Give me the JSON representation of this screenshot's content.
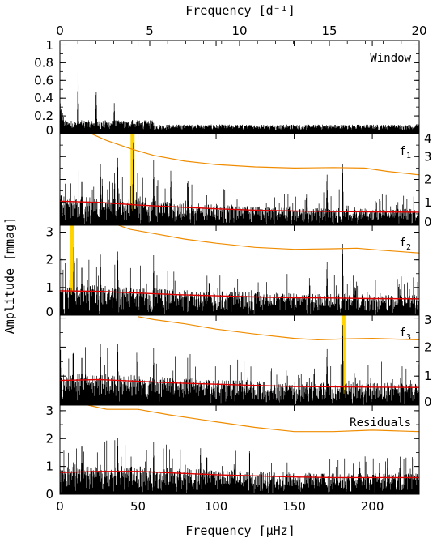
{
  "chart_data": {
    "type": "line",
    "x_axis": {
      "label": "Frequency [μHz]",
      "range": [
        0,
        230
      ],
      "ticks": [
        0,
        50,
        100,
        150,
        200
      ],
      "tick_labels": [
        "0",
        "50",
        "100",
        "150",
        "200"
      ]
    },
    "x_axis_top": {
      "label": "Frequency [d⁻¹]",
      "range": [
        0,
        20
      ],
      "ticks": [
        0,
        5,
        10,
        15,
        20
      ],
      "tick_labels": [
        "0",
        "5",
        "10",
        "15",
        "20"
      ]
    },
    "y_axis_label": "Amplitude [mmag]",
    "panels": [
      {
        "label": "Window",
        "label_main": "Window",
        "label_sub": "",
        "ylim": [
          0,
          1.05
        ],
        "ticks": [
          0,
          0.2,
          0.4,
          0.6,
          0.8,
          1
        ],
        "tick_labels": [
          "0",
          "0.2",
          "0.4",
          "0.6",
          "0.8",
          "1"
        ],
        "tick_side": "left",
        "peaks": [
          [
            11.6,
            0.72
          ],
          [
            23.2,
            0.53
          ],
          [
            34.8,
            0.35
          ],
          [
            46.4,
            0.18
          ],
          [
            58,
            0.08
          ]
        ],
        "noise_curve": [],
        "threshold_curve": [],
        "highlight": []
      },
      {
        "label": "f1",
        "label_main": "f",
        "label_sub": "1",
        "ylim": [
          0,
          4
        ],
        "ticks": [
          0,
          1,
          2,
          3,
          4
        ],
        "tick_labels": [
          "0",
          "1",
          "2",
          "3",
          "4"
        ],
        "tick_side": "right",
        "peaks": [
          [
            26,
            2.8
          ],
          [
            37,
            3.2
          ],
          [
            47,
            3.8
          ],
          [
            60,
            2.9
          ],
          [
            71,
            2.5
          ],
          [
            82,
            2.1
          ],
          [
            171,
            2.4
          ],
          [
            181,
            2.9
          ],
          [
            35,
            2.4
          ],
          [
            14,
            2.2
          ]
        ],
        "noise_curve": [
          [
            0,
            1.05
          ],
          [
            25,
            1.0
          ],
          [
            50,
            0.88
          ],
          [
            75,
            0.8
          ],
          [
            100,
            0.72
          ],
          [
            125,
            0.66
          ],
          [
            150,
            0.62
          ],
          [
            175,
            0.6
          ],
          [
            200,
            0.58
          ],
          [
            230,
            0.57
          ]
        ],
        "threshold_curve": [
          [
            20,
            4.0
          ],
          [
            30,
            3.7
          ],
          [
            45,
            3.35
          ],
          [
            60,
            3.05
          ],
          [
            80,
            2.8
          ],
          [
            100,
            2.65
          ],
          [
            125,
            2.55
          ],
          [
            150,
            2.5
          ],
          [
            175,
            2.52
          ],
          [
            195,
            2.5
          ],
          [
            210,
            2.35
          ],
          [
            230,
            2.2
          ]
        ],
        "highlight": [
          46.5
        ]
      },
      {
        "label": "f2",
        "label_main": "f",
        "label_sub": "2",
        "ylim": [
          0,
          3.25
        ],
        "ticks": [
          0,
          1,
          2,
          3
        ],
        "tick_labels": [
          "0",
          "1",
          "2",
          "3"
        ],
        "tick_side": "left",
        "peaks": [
          [
            26,
            2.3
          ],
          [
            37,
            2.5
          ],
          [
            60,
            2.2
          ],
          [
            171,
            2.1
          ],
          [
            181,
            2.8
          ],
          [
            9,
            3.1
          ],
          [
            14,
            2.0
          ]
        ],
        "noise_curve": [
          [
            0,
            0.88
          ],
          [
            25,
            0.86
          ],
          [
            50,
            0.8
          ],
          [
            75,
            0.74
          ],
          [
            100,
            0.7
          ],
          [
            125,
            0.66
          ],
          [
            150,
            0.63
          ],
          [
            175,
            0.62
          ],
          [
            200,
            0.6
          ],
          [
            230,
            0.59
          ]
        ],
        "threshold_curve": [
          [
            35,
            3.3
          ],
          [
            45,
            3.1
          ],
          [
            60,
            2.95
          ],
          [
            80,
            2.75
          ],
          [
            100,
            2.6
          ],
          [
            125,
            2.45
          ],
          [
            150,
            2.38
          ],
          [
            175,
            2.4
          ],
          [
            190,
            2.42
          ],
          [
            205,
            2.35
          ],
          [
            230,
            2.25
          ]
        ],
        "highlight": [
          7.5
        ]
      },
      {
        "label": "f3",
        "label_main": "f",
        "label_sub": "3",
        "ylim": [
          0,
          3.1
        ],
        "ticks": [
          0,
          1,
          2,
          3
        ],
        "tick_labels": [
          "0",
          "1",
          "2",
          "3"
        ],
        "tick_side": "right",
        "peaks": [
          [
            26,
            2.2
          ],
          [
            37,
            2.3
          ],
          [
            60,
            2.0
          ],
          [
            171,
            2.1
          ],
          [
            181,
            3.0
          ],
          [
            14,
            1.9
          ]
        ],
        "noise_curve": [
          [
            0,
            0.85
          ],
          [
            25,
            0.88
          ],
          [
            50,
            0.82
          ],
          [
            75,
            0.76
          ],
          [
            100,
            0.72
          ],
          [
            125,
            0.68
          ],
          [
            150,
            0.64
          ],
          [
            175,
            0.63
          ],
          [
            200,
            0.62
          ],
          [
            230,
            0.61
          ]
        ],
        "threshold_curve": [
          [
            50,
            3.05
          ],
          [
            60,
            2.95
          ],
          [
            80,
            2.8
          ],
          [
            100,
            2.62
          ],
          [
            125,
            2.45
          ],
          [
            150,
            2.3
          ],
          [
            165,
            2.25
          ],
          [
            180,
            2.28
          ],
          [
            200,
            2.3
          ],
          [
            230,
            2.25
          ]
        ],
        "highlight": [
          181.5
        ]
      },
      {
        "label": "Residuals",
        "label_main": "Residuals",
        "label_sub": "",
        "ylim": [
          0,
          3.2
        ],
        "ticks": [
          0,
          1,
          2,
          3
        ],
        "tick_labels": [
          "0",
          "1",
          "2",
          "3"
        ],
        "tick_side": "left",
        "peaks": [
          [
            14,
            2.0
          ],
          [
            37,
            2.2
          ],
          [
            60,
            1.9
          ],
          [
            90,
            1.8
          ]
        ],
        "noise_curve": [
          [
            0,
            0.78
          ],
          [
            25,
            0.82
          ],
          [
            50,
            0.82
          ],
          [
            75,
            0.76
          ],
          [
            100,
            0.7
          ],
          [
            125,
            0.66
          ],
          [
            150,
            0.62
          ],
          [
            175,
            0.6
          ],
          [
            200,
            0.6
          ],
          [
            230,
            0.6
          ]
        ],
        "threshold_curve": [
          [
            10,
            3.3
          ],
          [
            30,
            3.05
          ],
          [
            50,
            3.05
          ],
          [
            70,
            2.85
          ],
          [
            100,
            2.6
          ],
          [
            125,
            2.4
          ],
          [
            150,
            2.25
          ],
          [
            175,
            2.25
          ],
          [
            200,
            2.3
          ],
          [
            230,
            2.25
          ]
        ],
        "highlight": []
      }
    ],
    "series_colors": {
      "spectrum": "#000000",
      "noise": "#e00000",
      "threshold": "#f08c00",
      "highlight": "#ffd400"
    }
  }
}
